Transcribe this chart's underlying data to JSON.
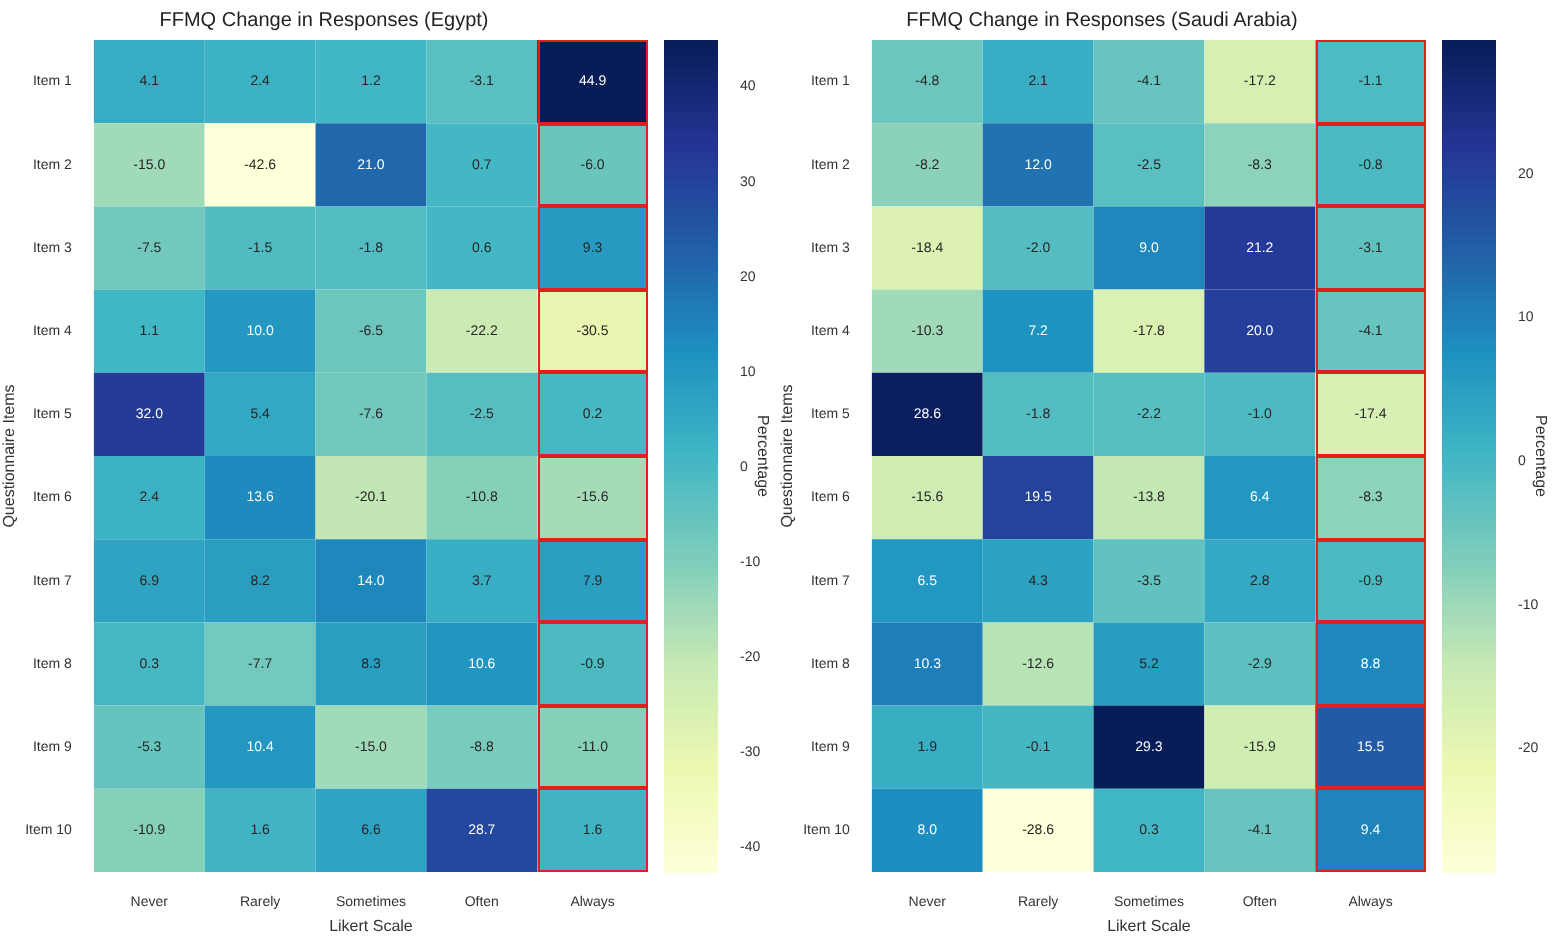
{
  "chart_data": [
    {
      "type": "heatmap",
      "title": "FFMQ Change in Responses (Egypt)",
      "xlabel": "Likert Scale",
      "ylabel": "Questionnaire Items",
      "clabel": "Percentage",
      "categories": [
        "Never",
        "Rarely",
        "Sometimes",
        "Often",
        "Always"
      ],
      "y_categories": [
        "Item 1",
        "Item 2",
        "Item 3",
        "Item 4",
        "Item 5",
        "Item 6",
        "Item 7",
        "Item 8",
        "Item 9",
        "Item 10"
      ],
      "cells": [
        [
          4.1,
          2.4,
          1.2,
          -3.1,
          44.9
        ],
        [
          -15.0,
          -42.6,
          21.0,
          0.7,
          -6.0
        ],
        [
          -7.5,
          -1.5,
          -1.8,
          0.6,
          9.3
        ],
        [
          1.1,
          10.0,
          -6.5,
          -22.2,
          -30.5
        ],
        [
          32.0,
          5.4,
          -7.6,
          -2.5,
          0.2
        ],
        [
          2.4,
          13.6,
          -20.1,
          -10.8,
          -15.6
        ],
        [
          6.9,
          8.2,
          14.0,
          3.7,
          7.9
        ],
        [
          0.3,
          -7.7,
          8.3,
          10.6,
          -0.9
        ],
        [
          -5.3,
          10.4,
          -15.0,
          -8.8,
          -11.0
        ],
        [
          -10.9,
          1.6,
          6.6,
          28.7,
          1.6
        ]
      ],
      "cell_labels": [
        [
          "4.1",
          "2.4",
          "1.2",
          "-3.1",
          "44.9"
        ],
        [
          "-15.0",
          "-42.6",
          "21.0",
          "0.7",
          "-6.0"
        ],
        [
          "-7.5",
          "-1.5",
          "-1.8",
          "0.6",
          "9.3"
        ],
        [
          "1.1",
          "10.0",
          "-6.5",
          "-22.2",
          "-30.5"
        ],
        [
          "32.0",
          "5.4",
          "-7.6",
          "-2.5",
          "0.2"
        ],
        [
          "2.4",
          "13.6",
          "-20.1",
          "-10.8",
          "-15.6"
        ],
        [
          "6.9",
          "8.2",
          "14.0",
          "3.7",
          "7.9"
        ],
        [
          "0.3",
          "-7.7",
          "8.3",
          "10.6",
          "-0.9"
        ],
        [
          "-5.3",
          "10.4",
          "-15.0",
          "-8.8",
          "-11.0"
        ],
        [
          "-10.9",
          "1.6",
          "6.6",
          "28.7",
          "1.6"
        ]
      ],
      "clim": [
        -42.6,
        44.9
      ],
      "cticks": [
        -40,
        -30,
        -20,
        -10,
        0,
        10,
        20,
        30,
        40
      ]
    },
    {
      "type": "heatmap",
      "title": "FFMQ Change in Responses (Saudi Arabia)",
      "xlabel": "Likert Scale",
      "ylabel": "Questionnaire Items",
      "clabel": "Percentage",
      "categories": [
        "Never",
        "Rarely",
        "Sometimes",
        "Often",
        "Always"
      ],
      "y_categories": [
        "Item 1",
        "Item 2",
        "Item 3",
        "Item 4",
        "Item 5",
        "Item 6",
        "Item 7",
        "Item 8",
        "Item 9",
        "Item 10"
      ],
      "cells": [
        [
          -4.8,
          2.1,
          -4.1,
          -17.2,
          -1.1
        ],
        [
          -8.2,
          12.0,
          -2.5,
          -8.3,
          -0.8
        ],
        [
          -18.4,
          -2.0,
          9.0,
          21.2,
          -3.1
        ],
        [
          -10.3,
          7.2,
          -17.8,
          20.0,
          -4.1
        ],
        [
          28.6,
          -1.8,
          -2.2,
          -1.0,
          -17.4
        ],
        [
          -15.6,
          19.5,
          -13.8,
          6.4,
          -8.3
        ],
        [
          6.5,
          4.3,
          -3.5,
          2.8,
          -0.9
        ],
        [
          10.3,
          -12.6,
          5.2,
          -2.9,
          8.8
        ],
        [
          1.9,
          -0.1,
          29.3,
          -15.9,
          15.5
        ],
        [
          8.0,
          -28.6,
          0.3,
          -4.1,
          9.4
        ]
      ],
      "cell_labels": [
        [
          "-4.8",
          "2.1",
          "-4.1",
          "-17.2",
          "-1.1"
        ],
        [
          "-8.2",
          "12.0",
          "-2.5",
          "-8.3",
          "-0.8"
        ],
        [
          "-18.4",
          "-2.0",
          "9.0",
          "21.2",
          "-3.1"
        ],
        [
          "-10.3",
          "7.2",
          "-17.8",
          "20.0",
          "-4.1"
        ],
        [
          "28.6",
          "-1.8",
          "-2.2",
          "-1.0",
          "-17.4"
        ],
        [
          "-15.6",
          "19.5",
          "-13.8",
          "6.4",
          "-8.3"
        ],
        [
          "6.5",
          "4.3",
          "-3.5",
          "2.8",
          "-0.9"
        ],
        [
          "10.3",
          "-12.6",
          "5.2",
          "-2.9",
          "8.8"
        ],
        [
          "1.9",
          "-0.1",
          "29.3",
          "-15.9",
          "15.5"
        ],
        [
          "8.0",
          "-28.6",
          "0.3",
          "-4.1",
          "9.4"
        ]
      ],
      "clim": [
        -28.6,
        29.3
      ],
      "cticks": [
        -20,
        -10,
        0,
        10,
        20
      ]
    }
  ]
}
